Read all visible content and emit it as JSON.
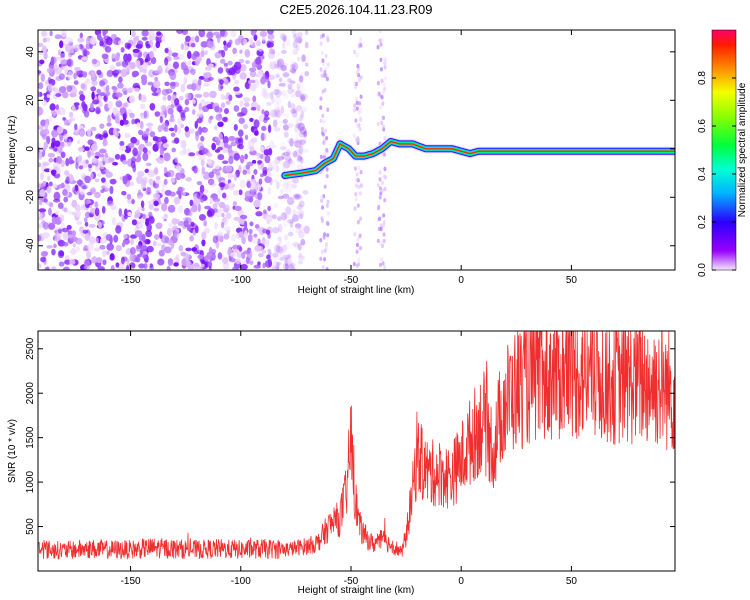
{
  "title": "C2E5.2026.104.11.23.R09",
  "chart_data": [
    {
      "type": "heatmap",
      "title": "C2E5.2026.104.11.23.R09",
      "xlabel": "Height of straight line (km)",
      "ylabel": "Frequency (Hz)",
      "xlim": [
        -192,
        97
      ],
      "ylim": [
        -50,
        49
      ],
      "xticks": [
        -150,
        -100,
        -50,
        0,
        50
      ],
      "yticks": [
        -40,
        -20,
        0,
        20,
        40
      ],
      "colorbar": {
        "label": "Normalized spectral amplitude",
        "range": [
          0,
          1
        ],
        "ticks": [
          "0.0",
          "0.2",
          "0.4",
          "0.6",
          "0.8"
        ]
      },
      "ridge": {
        "x": [
          -80,
          -72,
          -66,
          -62,
          -58,
          -55,
          -51,
          -48,
          -44,
          -40,
          -36,
          -32,
          -28,
          -22,
          -16,
          -10,
          -4,
          0,
          4,
          8,
          14,
          20,
          30,
          50,
          70,
          97
        ],
        "y": [
          -11,
          -10,
          -9,
          -6,
          -4,
          2,
          0,
          -3,
          -3,
          -2,
          0,
          3,
          2,
          2,
          0,
          0,
          0,
          -1,
          -2,
          -1,
          -1,
          -1,
          -1,
          -1,
          -1,
          -1
        ]
      },
      "noise_region_end_x": -78,
      "noise_streaks_x": [
        -62,
        -47,
        -36
      ]
    },
    {
      "type": "line",
      "xlabel": "Height of straight line (km)",
      "ylabel": "SNR (10 * v/v)",
      "xlim": [
        -192,
        97
      ],
      "ylim": [
        0,
        2700
      ],
      "xticks": [
        -150,
        -100,
        -50,
        0,
        50
      ],
      "yticks": [
        500,
        1000,
        1500,
        2000,
        2500
      ],
      "series": [
        {
          "name": "SNR",
          "color": "#ef2f2f",
          "x": [
            -192,
            -180,
            -170,
            -160,
            -150,
            -140,
            -130,
            -120,
            -110,
            -100,
            -90,
            -80,
            -75,
            -70,
            -65,
            -60,
            -55,
            -52,
            -50,
            -48,
            -46,
            -44,
            -40,
            -36,
            -32,
            -29,
            -27,
            -25,
            -22,
            -20,
            -15,
            -10,
            -5,
            0,
            5,
            10,
            15,
            18,
            20,
            25,
            30,
            35,
            40,
            50,
            60,
            70,
            80,
            90,
            97
          ],
          "values": [
            250,
            230,
            250,
            240,
            240,
            260,
            250,
            240,
            250,
            240,
            250,
            240,
            260,
            280,
            320,
            500,
            600,
            900,
            1500,
            800,
            500,
            400,
            300,
            350,
            300,
            250,
            200,
            400,
            900,
            1300,
            1100,
            1100,
            1050,
            1250,
            1500,
            1700,
            1350,
            1800,
            1900,
            2050,
            2150,
            2150,
            2200,
            2250,
            2200,
            2150,
            2150,
            2100,
            2000
          ]
        }
      ]
    }
  ]
}
